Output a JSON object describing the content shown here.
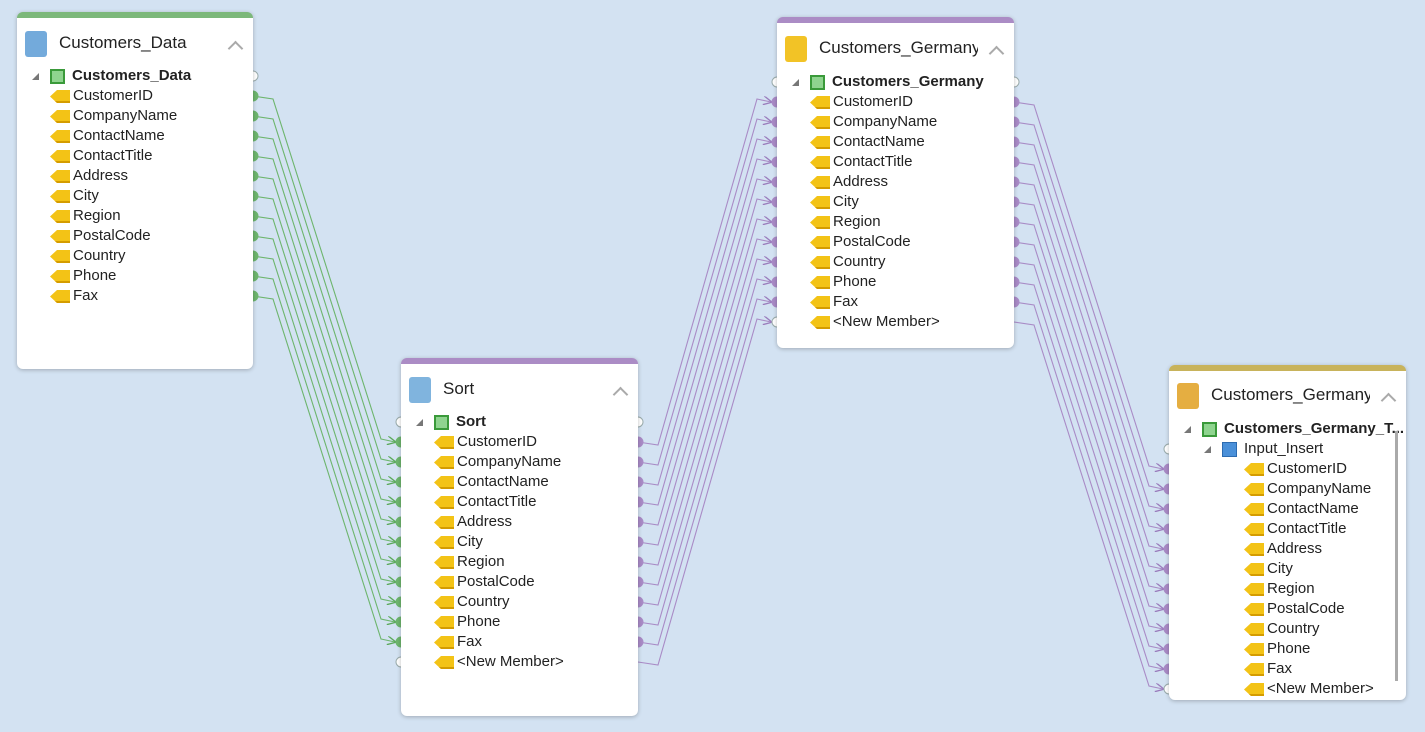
{
  "nodes": [
    {
      "title": "Customers_Data",
      "root": "Customers_Data",
      "fields": [
        "CustomerID",
        "CompanyName",
        "ContactName",
        "ContactTitle",
        "Address",
        "City",
        "Region",
        "PostalCode",
        "Country",
        "Phone",
        "Fax"
      ]
    },
    {
      "title": "Sort",
      "root": "Sort",
      "fields": [
        "CustomerID",
        "CompanyName",
        "ContactName",
        "ContactTitle",
        "Address",
        "City",
        "Region",
        "PostalCode",
        "Country",
        "Phone",
        "Fax",
        "<New Member>"
      ]
    },
    {
      "title": "Customers_Germany",
      "root": "Customers_Germany",
      "fields": [
        "CustomerID",
        "CompanyName",
        "ContactName",
        "ContactTitle",
        "Address",
        "City",
        "Region",
        "PostalCode",
        "Country",
        "Phone",
        "Fax",
        "<New Member>"
      ]
    },
    {
      "title": "Customers_Germany",
      "root": "Customers_Germany_T...",
      "group": "Input_Insert",
      "fields": [
        "CustomerID",
        "CompanyName",
        "ContactName",
        "ContactTitle",
        "Address",
        "City",
        "Region",
        "PostalCode",
        "Country",
        "Phone",
        "Fax",
        "<New Member>"
      ]
    }
  ]
}
